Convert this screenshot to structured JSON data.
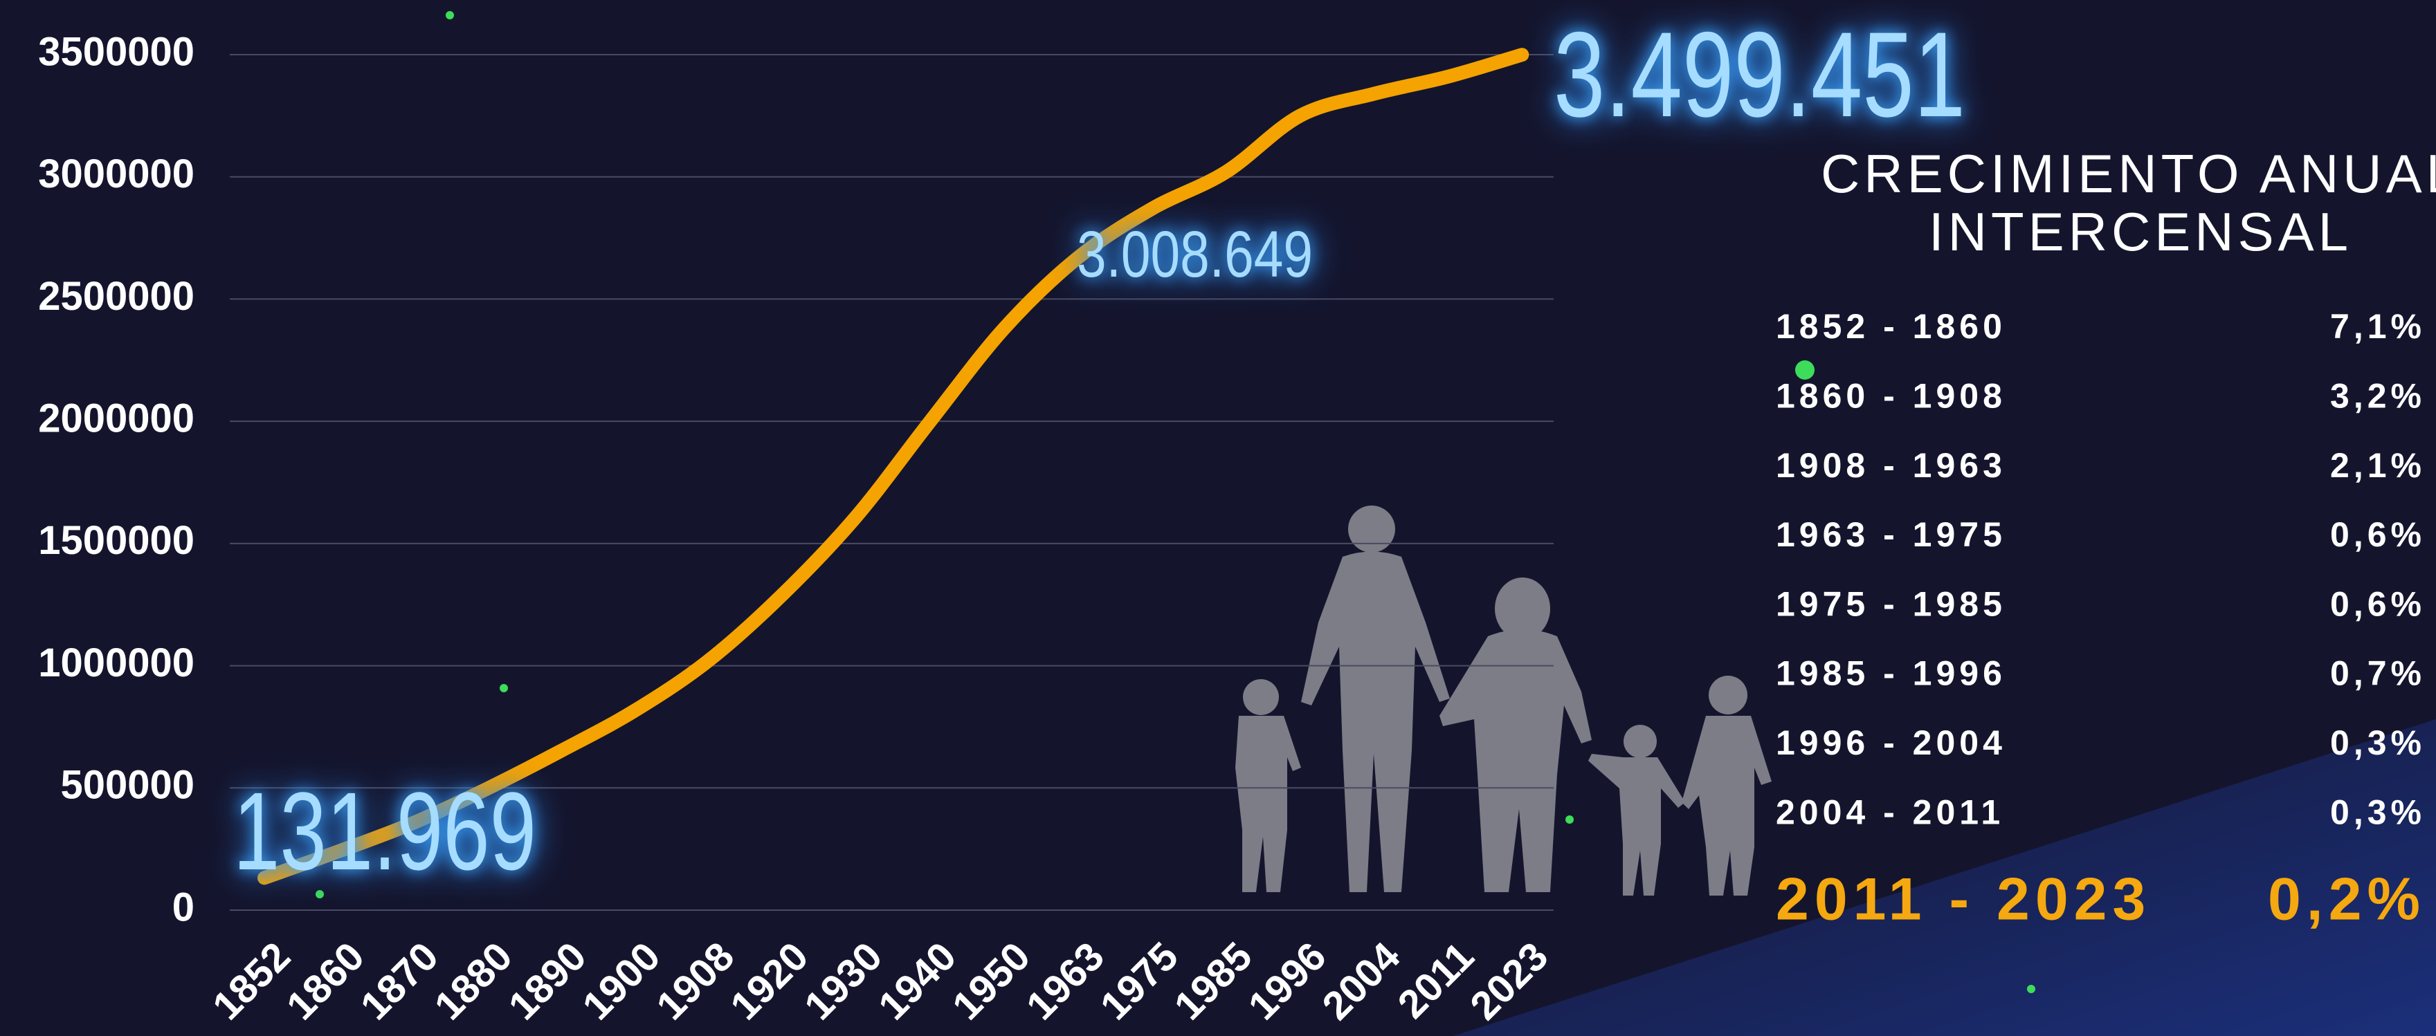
{
  "chart_data": {
    "type": "line",
    "categories": [
      "1852",
      "1860",
      "1870",
      "1880",
      "1890",
      "1900",
      "1908",
      "1920",
      "1930",
      "1940",
      "1950",
      "1963",
      "1975",
      "1985",
      "1996",
      "2004",
      "2011",
      "2023"
    ],
    "values": [
      131969,
      240000,
      355000,
      495000,
      650000,
      815000,
      1020000,
      1290000,
      1610000,
      2000000,
      2380000,
      2670000,
      2870000,
      3020000,
      3250000,
      3340000,
      3410000,
      3499451
    ],
    "color": "#f5a300",
    "ylim": [
      0,
      3500000
    ],
    "yticks": [
      0,
      500000,
      1000000,
      1500000,
      2000000,
      2500000,
      3000000,
      3500000
    ],
    "grid": true,
    "annotations": [
      "131.969",
      "3.008.649",
      "3.499.451"
    ]
  },
  "growth_table": {
    "title": [
      "CRECIMIENTO ANUAL",
      "INTERCENSAL"
    ],
    "rows": [
      [
        "1852 - 1860",
        "7,1%"
      ],
      [
        "1860 - 1908",
        "3,2%"
      ],
      [
        "1908 - 1963",
        "2,1%"
      ],
      [
        "1963 - 1975",
        "0,6%"
      ],
      [
        "1975 - 1985",
        "0,6%"
      ],
      [
        "1985 - 1996",
        "0,7%"
      ],
      [
        "1996 - 2004",
        "0,3%"
      ],
      [
        "2004 - 2011",
        "0,3%"
      ]
    ],
    "highlight": [
      "2011 - 2023",
      "0,2%"
    ]
  }
}
